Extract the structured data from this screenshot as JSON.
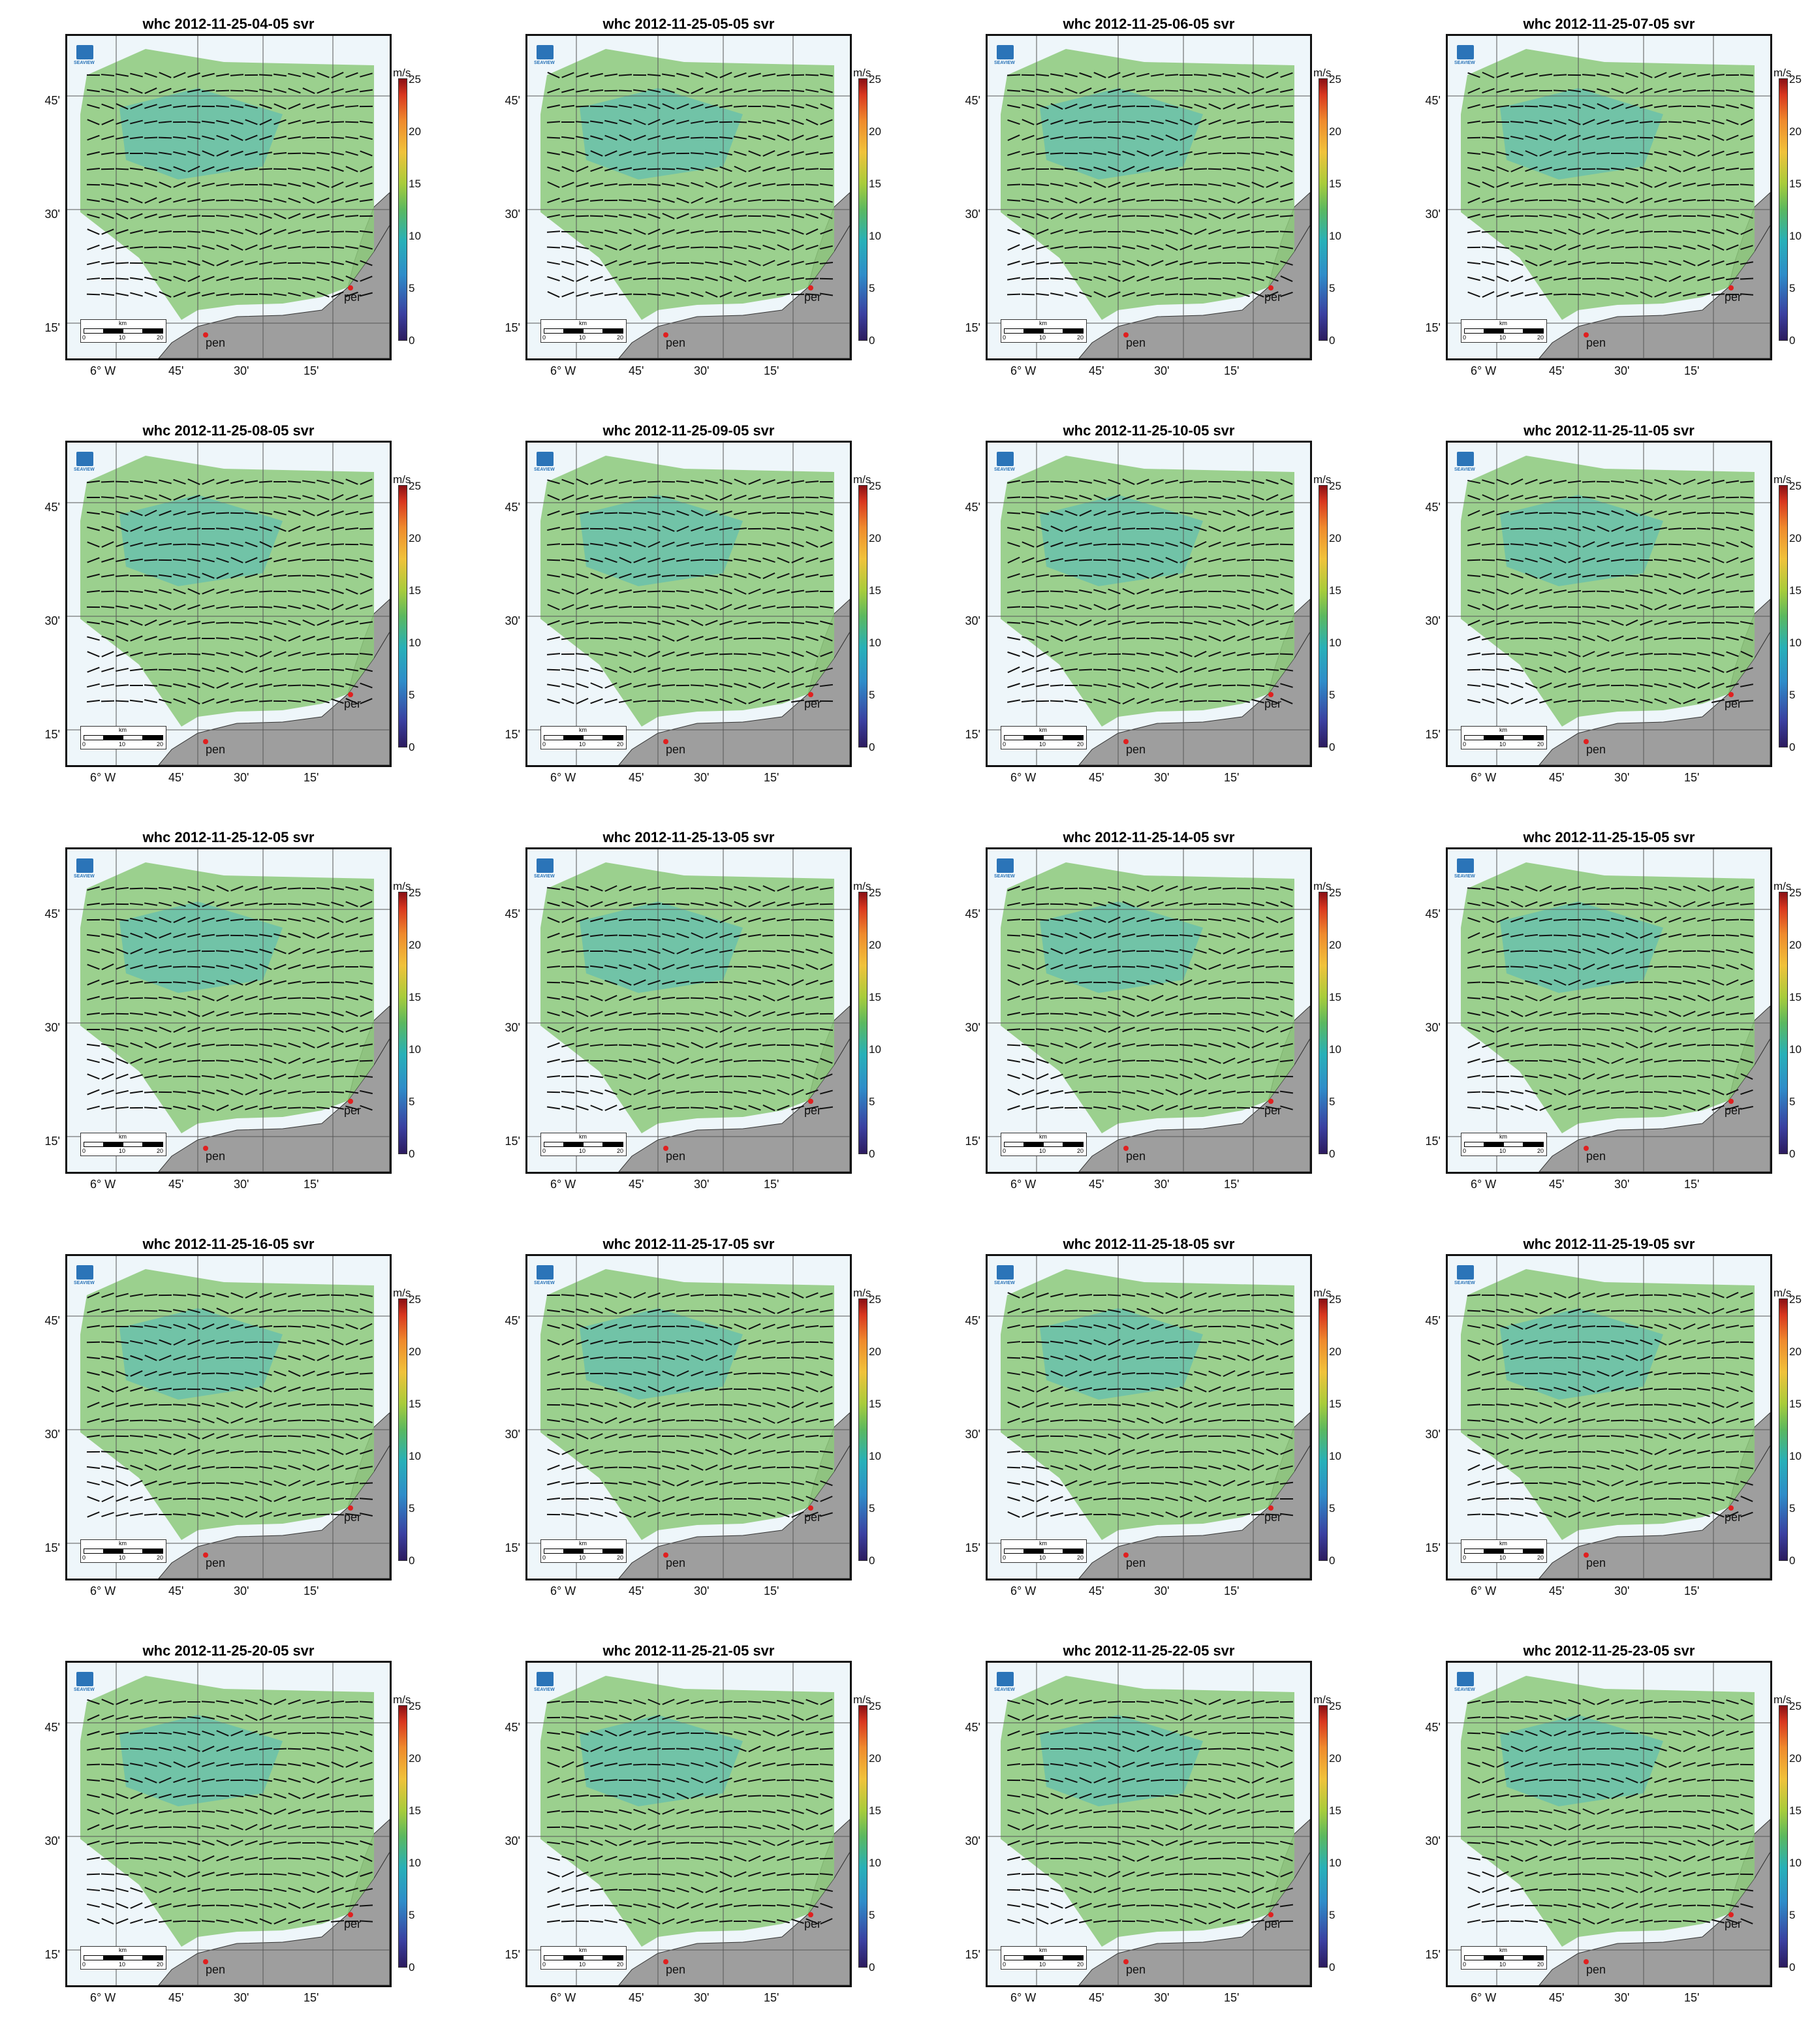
{
  "panels": [
    {
      "title": "whc 2012-11-25-04-05 svr"
    },
    {
      "title": "whc 2012-11-25-05-05 svr"
    },
    {
      "title": "whc 2012-11-25-06-05 svr"
    },
    {
      "title": "whc 2012-11-25-07-05 svr"
    },
    {
      "title": "whc 2012-11-25-08-05 svr"
    },
    {
      "title": "whc 2012-11-25-09-05 svr"
    },
    {
      "title": "whc 2012-11-25-10-05 svr"
    },
    {
      "title": "whc 2012-11-25-11-05 svr"
    },
    {
      "title": "whc 2012-11-25-12-05 svr"
    },
    {
      "title": "whc 2012-11-25-13-05 svr"
    },
    {
      "title": "whc 2012-11-25-14-05 svr"
    },
    {
      "title": "whc 2012-11-25-15-05 svr"
    },
    {
      "title": "whc 2012-11-25-16-05 svr"
    },
    {
      "title": "whc 2012-11-25-17-05 svr"
    },
    {
      "title": "whc 2012-11-25-18-05 svr"
    },
    {
      "title": "whc 2012-11-25-19-05 svr"
    },
    {
      "title": "whc 2012-11-25-20-05 svr"
    },
    {
      "title": "whc 2012-11-25-21-05 svr"
    },
    {
      "title": "whc 2012-11-25-22-05 svr"
    },
    {
      "title": "whc 2012-11-25-23-05 svr"
    }
  ],
  "axis": {
    "lat_labels": [
      "45'",
      "30'",
      "15'"
    ],
    "lon_labels": [
      "6° W",
      "45'",
      "30'",
      "15'"
    ]
  },
  "colorbar": {
    "unit": "m/s",
    "ticks": [
      "25",
      "20",
      "15",
      "10",
      "5",
      "0"
    ]
  },
  "scalebar": {
    "unit": "km",
    "labels": [
      "0",
      "10",
      "20"
    ]
  },
  "sites": {
    "pen": "pen",
    "per": "per"
  },
  "logo": "SEAVIEW",
  "colors": {
    "land": "#9e9e9e",
    "sea": "#eef6fa",
    "site": "#e02020"
  }
}
